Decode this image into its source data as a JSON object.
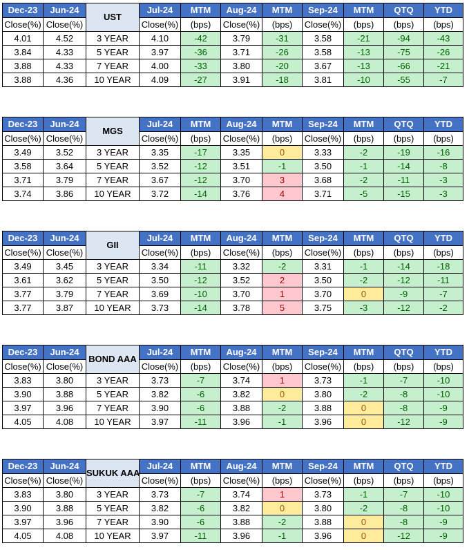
{
  "headers": {
    "dec23": "Dec-23",
    "jun24": "Jun-24",
    "jul24": "Jul-24",
    "mtm": "MTM",
    "aug24": "Aug-24",
    "sep24": "Sep-24",
    "qtq": "QTQ",
    "ytd": "YTD",
    "close": "Close(%)",
    "bps": "(bps)"
  },
  "colors": {
    "header_bg": "#4472c4",
    "name_bg": "#dce6f2",
    "negative_bg": "#c6efce",
    "negative_text": "#006100",
    "zero_bg": "#ffeb9c",
    "zero_text": "#9c5700",
    "positive_bg": "#ffc7ce",
    "positive_text": "#9c0006"
  },
  "tables": [
    {
      "name": "UST",
      "rows": [
        {
          "dec23": "4.01",
          "jun24": "4.52",
          "tenor": "3 YEAR",
          "jul24": "4.10",
          "mtm1": "-42",
          "aug24": "3.79",
          "mtm2": "-31",
          "sep24": "3.58",
          "mtm3": "-21",
          "qtq": "-94",
          "ytd": "-43"
        },
        {
          "dec23": "3.84",
          "jun24": "4.33",
          "tenor": "5 YEAR",
          "jul24": "3.97",
          "mtm1": "-36",
          "aug24": "3.71",
          "mtm2": "-26",
          "sep24": "3.58",
          "mtm3": "-13",
          "qtq": "-75",
          "ytd": "-26"
        },
        {
          "dec23": "3.88",
          "jun24": "4.33",
          "tenor": "7 YEAR",
          "jul24": "4.00",
          "mtm1": "-33",
          "aug24": "3.80",
          "mtm2": "-20",
          "sep24": "3.67",
          "mtm3": "-13",
          "qtq": "-66",
          "ytd": "-21"
        },
        {
          "dec23": "3.88",
          "jun24": "4.36",
          "tenor": "10 YEAR",
          "jul24": "4.09",
          "mtm1": "-27",
          "aug24": "3.91",
          "mtm2": "-18",
          "sep24": "3.81",
          "mtm3": "-10",
          "qtq": "-55",
          "ytd": "-7"
        }
      ]
    },
    {
      "name": "MGS",
      "rows": [
        {
          "dec23": "3.49",
          "jun24": "3.52",
          "tenor": "3 YEAR",
          "jul24": "3.35",
          "mtm1": "-17",
          "aug24": "3.35",
          "mtm2": "0",
          "sep24": "3.33",
          "mtm3": "-2",
          "qtq": "-19",
          "ytd": "-16"
        },
        {
          "dec23": "3.58",
          "jun24": "3.64",
          "tenor": "5 YEAR",
          "jul24": "3.52",
          "mtm1": "-12",
          "aug24": "3.51",
          "mtm2": "-1",
          "sep24": "3.50",
          "mtm3": "-1",
          "qtq": "-14",
          "ytd": "-8"
        },
        {
          "dec23": "3.71",
          "jun24": "3.79",
          "tenor": "7 YEAR",
          "jul24": "3.67",
          "mtm1": "-12",
          "aug24": "3.70",
          "mtm2": "3",
          "sep24": "3.68",
          "mtm3": "-2",
          "qtq": "-11",
          "ytd": "-3"
        },
        {
          "dec23": "3.74",
          "jun24": "3.86",
          "tenor": "10 YEAR",
          "jul24": "3.72",
          "mtm1": "-14",
          "aug24": "3.76",
          "mtm2": "4",
          "sep24": "3.71",
          "mtm3": "-5",
          "qtq": "-15",
          "ytd": "-3"
        }
      ]
    },
    {
      "name": "GII",
      "rows": [
        {
          "dec23": "3.49",
          "jun24": "3.45",
          "tenor": "3 YEAR",
          "jul24": "3.34",
          "mtm1": "-11",
          "aug24": "3.32",
          "mtm2": "-2",
          "sep24": "3.31",
          "mtm3": "-1",
          "qtq": "-14",
          "ytd": "-18"
        },
        {
          "dec23": "3.61",
          "jun24": "3.62",
          "tenor": "5 YEAR",
          "jul24": "3.50",
          "mtm1": "-12",
          "aug24": "3.52",
          "mtm2": "2",
          "sep24": "3.50",
          "mtm3": "-2",
          "qtq": "-12",
          "ytd": "-11"
        },
        {
          "dec23": "3.77",
          "jun24": "3.79",
          "tenor": "7 YEAR",
          "jul24": "3.69",
          "mtm1": "-10",
          "aug24": "3.70",
          "mtm2": "1",
          "sep24": "3.70",
          "mtm3": "0",
          "qtq": "-9",
          "ytd": "-7"
        },
        {
          "dec23": "3.77",
          "jun24": "3.87",
          "tenor": "10 YEAR",
          "jul24": "3.73",
          "mtm1": "-14",
          "aug24": "3.78",
          "mtm2": "5",
          "sep24": "3.75",
          "mtm3": "-3",
          "qtq": "-12",
          "ytd": "-2"
        }
      ]
    },
    {
      "name": "BOND AAA",
      "rows": [
        {
          "dec23": "3.83",
          "jun24": "3.80",
          "tenor": "3 YEAR",
          "jul24": "3.73",
          "mtm1": "-7",
          "aug24": "3.74",
          "mtm2": "1",
          "sep24": "3.73",
          "mtm3": "-1",
          "qtq": "-7",
          "ytd": "-10"
        },
        {
          "dec23": "3.90",
          "jun24": "3.88",
          "tenor": "5 YEAR",
          "jul24": "3.82",
          "mtm1": "-6",
          "aug24": "3.82",
          "mtm2": "0",
          "sep24": "3.80",
          "mtm3": "-2",
          "qtq": "-8",
          "ytd": "-10"
        },
        {
          "dec23": "3.97",
          "jun24": "3.96",
          "tenor": "7 YEAR",
          "jul24": "3.90",
          "mtm1": "-6",
          "aug24": "3.88",
          "mtm2": "-2",
          "sep24": "3.88",
          "mtm3": "0",
          "qtq": "-8",
          "ytd": "-9"
        },
        {
          "dec23": "4.05",
          "jun24": "4.08",
          "tenor": "10 YEAR",
          "jul24": "3.97",
          "mtm1": "-11",
          "aug24": "3.96",
          "mtm2": "-1",
          "sep24": "3.96",
          "mtm3": "0",
          "qtq": "-12",
          "ytd": "-9"
        }
      ]
    },
    {
      "name": "SUKUK AAA",
      "rows": [
        {
          "dec23": "3.83",
          "jun24": "3.80",
          "tenor": "3 YEAR",
          "jul24": "3.73",
          "mtm1": "-7",
          "aug24": "3.74",
          "mtm2": "1",
          "sep24": "3.73",
          "mtm3": "-1",
          "qtq": "-7",
          "ytd": "-10"
        },
        {
          "dec23": "3.90",
          "jun24": "3.88",
          "tenor": "5 YEAR",
          "jul24": "3.82",
          "mtm1": "-6",
          "aug24": "3.82",
          "mtm2": "0",
          "sep24": "3.80",
          "mtm3": "-2",
          "qtq": "-8",
          "ytd": "-10"
        },
        {
          "dec23": "3.97",
          "jun24": "3.96",
          "tenor": "7 YEAR",
          "jul24": "3.90",
          "mtm1": "-6",
          "aug24": "3.88",
          "mtm2": "-2",
          "sep24": "3.88",
          "mtm3": "0",
          "qtq": "-8",
          "ytd": "-9"
        },
        {
          "dec23": "4.05",
          "jun24": "4.08",
          "tenor": "10 YEAR",
          "jul24": "3.97",
          "mtm1": "-11",
          "aug24": "3.96",
          "mtm2": "-1",
          "sep24": "3.96",
          "mtm3": "0",
          "qtq": "-12",
          "ytd": "-9"
        }
      ]
    }
  ]
}
